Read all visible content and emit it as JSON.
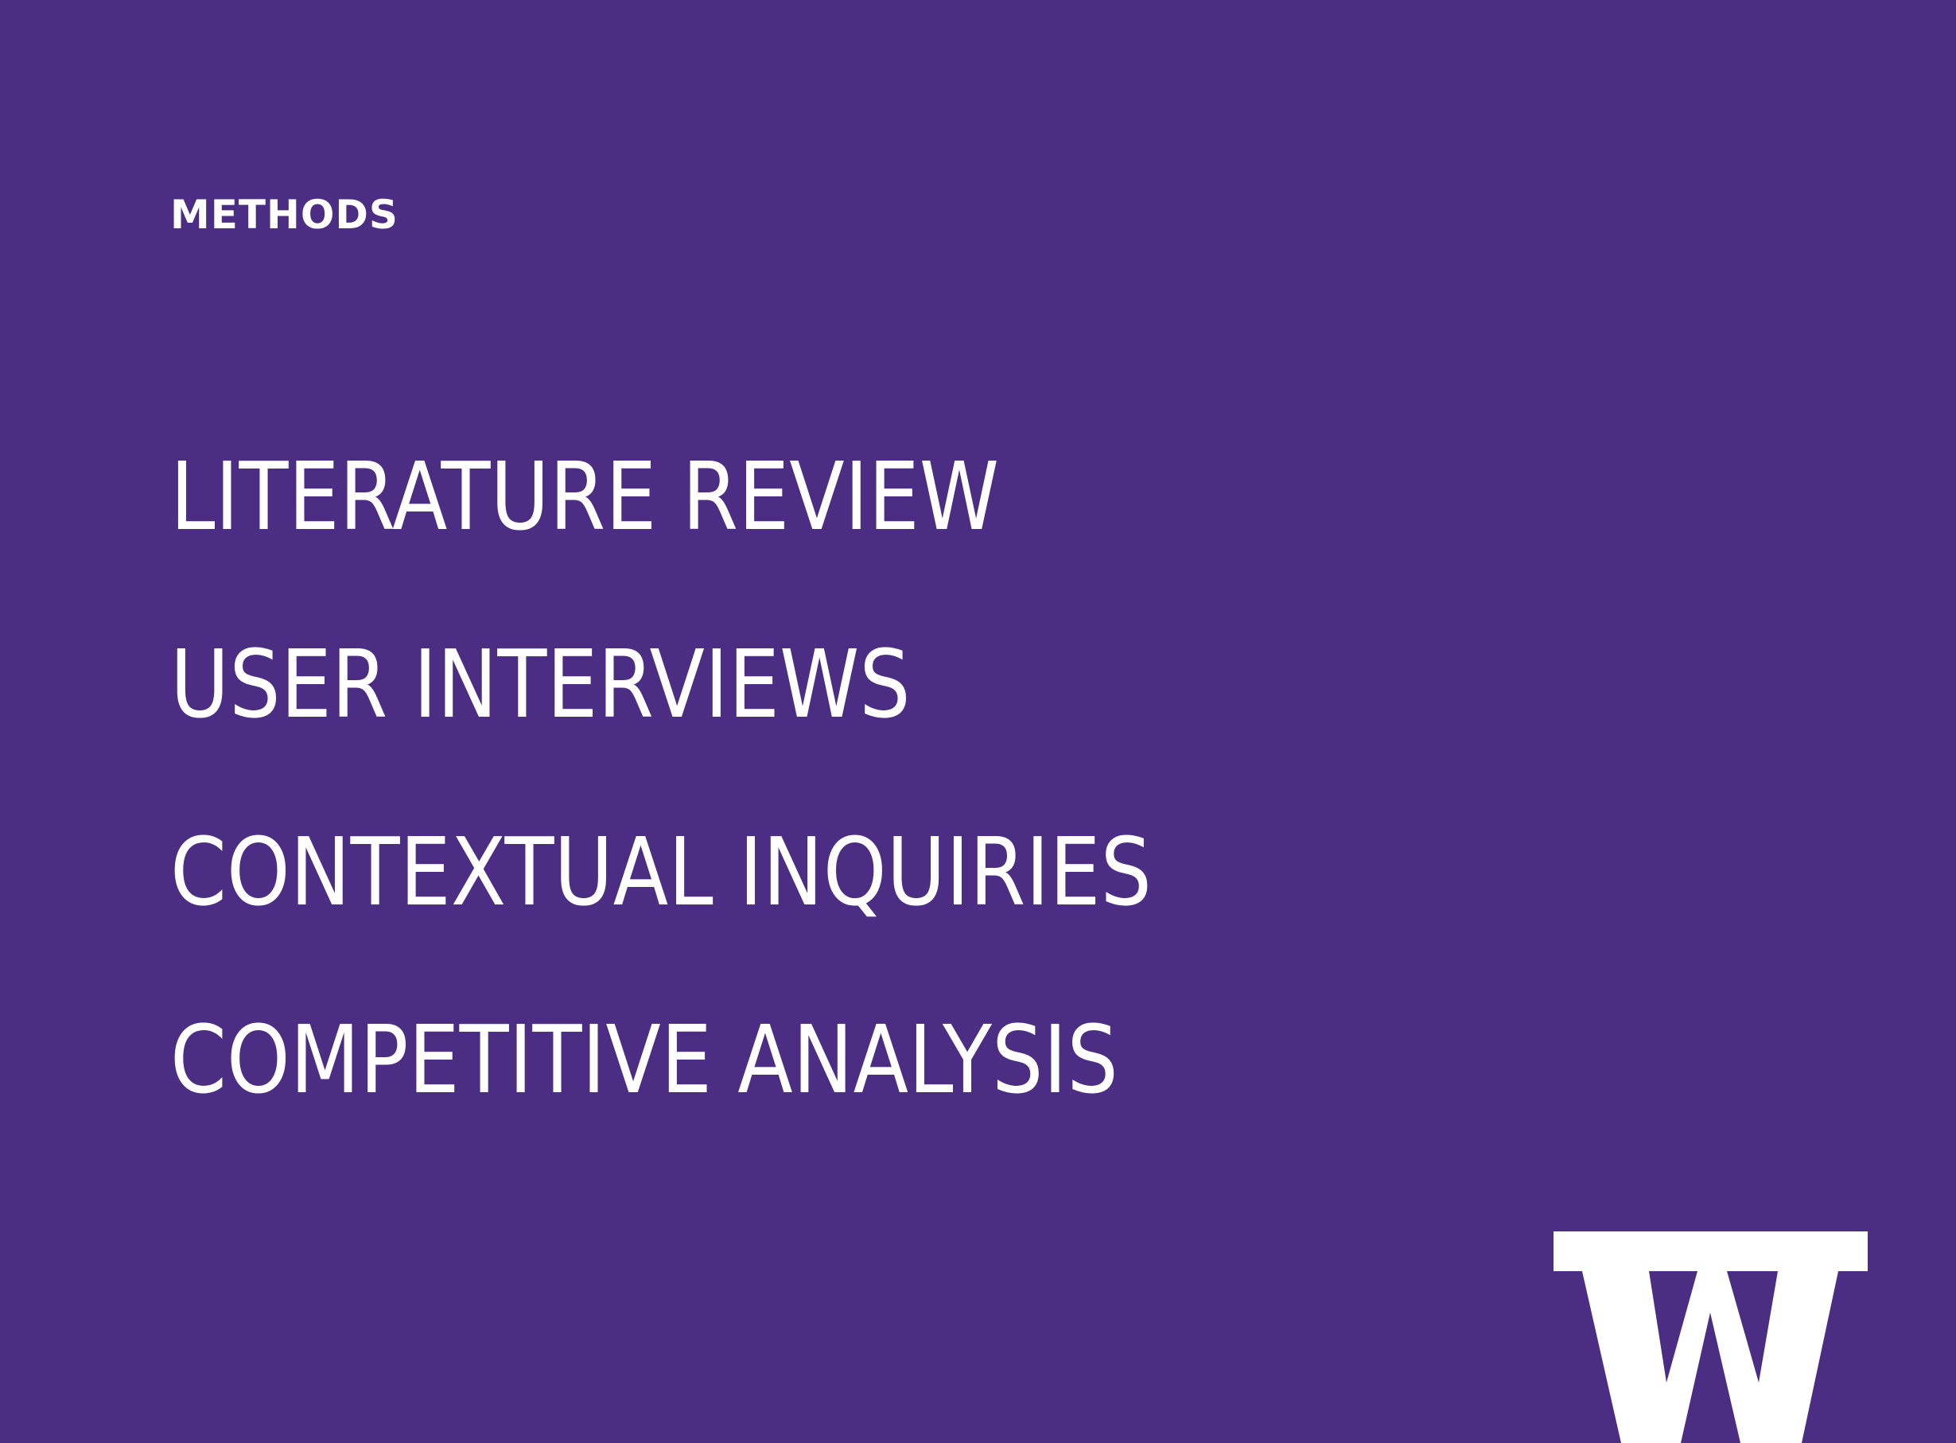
{
  "slide": {
    "background_color": "#4b2e83",
    "text_color": "#ffffff",
    "section_label": "METHODS",
    "methods": [
      "LITERATURE REVIEW",
      "USER INTERVIEWS",
      "CONTEXTUAL INQUIRIES",
      "COMPETITIVE ANALYSIS"
    ],
    "logo_icon": "university-w-logo-icon"
  }
}
